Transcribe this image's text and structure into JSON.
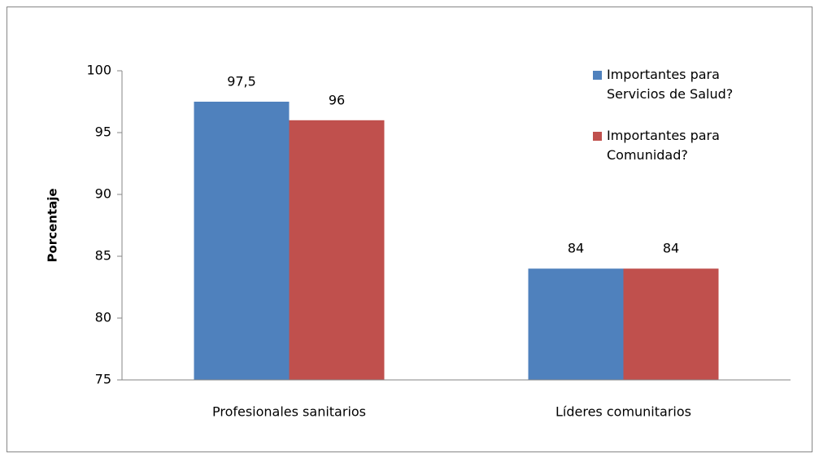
{
  "chart_data": {
    "type": "bar",
    "y_label": "Porcentaje",
    "categories": [
      "Profesionales sanitarios",
      "Líderes comunitarios"
    ],
    "series": [
      {
        "name": "Importantes para Servicios de Salud?",
        "color": "#4f81bd",
        "values": [
          97.5,
          84
        ],
        "value_labels": [
          "97,5",
          "84"
        ]
      },
      {
        "name": "Importantes para Comunidad?",
        "color": "#c0504d",
        "values": [
          96,
          84
        ]
      }
    ],
    "ylim": [
      75,
      100
    ],
    "yticks": [
      75,
      80,
      85,
      90,
      95,
      100
    ],
    "grid": false,
    "legend": "top-right"
  }
}
